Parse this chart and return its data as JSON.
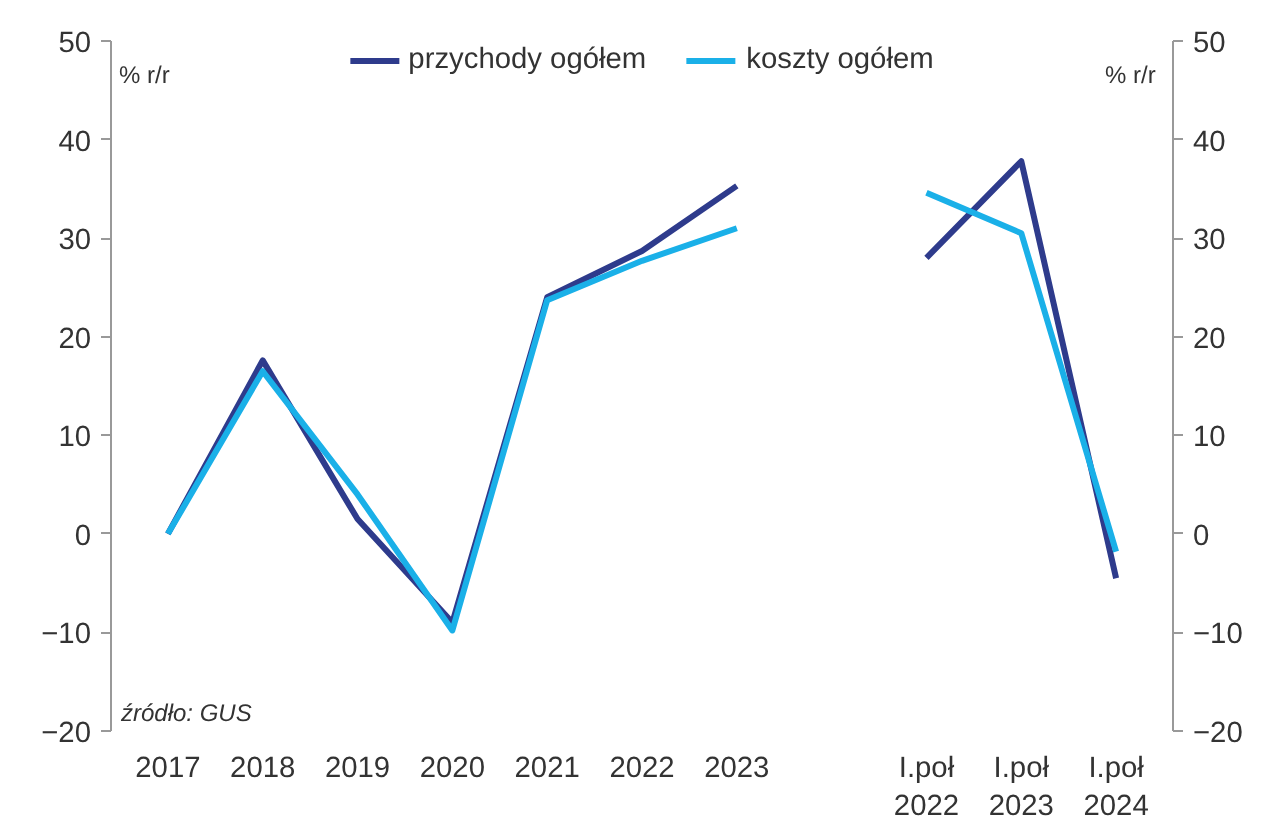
{
  "chart_data": {
    "type": "line",
    "categories": [
      "2017",
      "2018",
      "2019",
      "2020",
      "2021",
      "2022",
      "2023",
      null,
      "I.poł\n2022",
      "I.poł\n2023",
      "I.poł\n2024"
    ],
    "series": [
      {
        "name": "przychody ogółem",
        "color": "#2e3b8c",
        "values": [
          0,
          17.6,
          1.5,
          -9,
          24,
          28.7,
          35.3,
          null,
          28,
          37.8,
          -4.5
        ]
      },
      {
        "name": "koszty ogółem",
        "color": "#1ab0e8",
        "values": [
          0,
          16.5,
          4,
          -9.8,
          23.7,
          27.7,
          31,
          null,
          34.6,
          30.5,
          -1.8
        ]
      }
    ],
    "ylabel": "% r/r",
    "y2label": "% r/r",
    "ylim": [
      -20,
      50
    ],
    "yticks": [
      -20,
      -10,
      0,
      10,
      20,
      30,
      40,
      50
    ],
    "y2lim": [
      -20,
      50
    ],
    "y2ticks": [
      -20,
      -10,
      0,
      10,
      20,
      30,
      40,
      50
    ],
    "legend": "top",
    "grid": false,
    "annotations": [
      "źródło: GUS"
    ]
  }
}
